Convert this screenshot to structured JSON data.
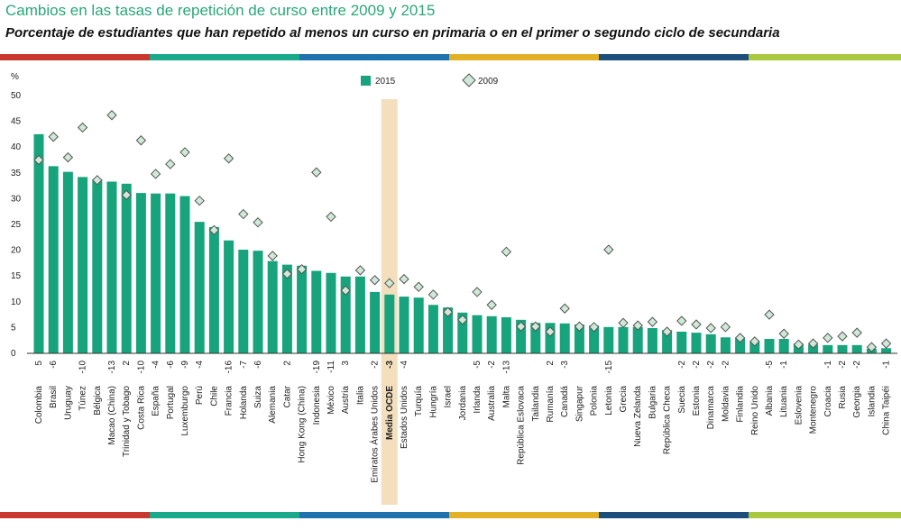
{
  "chart_data": {
    "type": "bar",
    "title": "Cambios en las tasas de repetición de curso entre 2009 y 2015",
    "subtitle": "Porcentaje de estudiantes que han repetido al menos un curso en primaria o en el primer o segundo ciclo de secundaria",
    "y_label": "%",
    "categories": [
      "Colombia",
      "Brasil",
      "Uruguay",
      "Túnez",
      "Bélgica",
      "Macao (China)",
      "Trinidad y Tobago",
      "Costa Rica",
      "España",
      "Portugal",
      "Luxemburgo",
      "Perú",
      "Chile",
      "Francia",
      "Holanda",
      "Suiza",
      "Alemania",
      "Catar",
      "Hong Kong (China)",
      "Indonesia",
      "México",
      "Austria",
      "Italia",
      "Emiratos Árabes Unidos",
      "Media OCDE",
      "Estados Unidos",
      "Turquía",
      "Hungría",
      "Israel",
      "Jordania",
      "Irlanda",
      "Australia",
      "Malta",
      "República Eslovaca",
      "Tailandia",
      "Rumanía",
      "Canadá",
      "Singapur",
      "Polonia",
      "Letonia",
      "Grecia",
      "Nueva Zelanda",
      "Bulgaria",
      "República Checa",
      "Suecia",
      "Estonia",
      "Dinamarca",
      "Moldavia",
      "Finlandia",
      "Reino Unido",
      "Albania",
      "Lituania",
      "Eslovenia",
      "Montenegro",
      "Croacia",
      "Rusia",
      "Georgia",
      "Islandia",
      "China Taipéi"
    ],
    "changes": [
      5,
      -6,
      null,
      -10,
      null,
      -13,
      2,
      -10,
      -4,
      -6,
      -9,
      -4,
      null,
      -16,
      -7,
      -6,
      null,
      2,
      null,
      -19,
      -11,
      3,
      null,
      -2,
      -3,
      -4,
      null,
      null,
      null,
      null,
      -5,
      -2,
      -13,
      null,
      null,
      2,
      -3,
      null,
      null,
      -15,
      null,
      null,
      null,
      null,
      -2,
      -2,
      -2,
      -2,
      null,
      null,
      -5,
      -1,
      null,
      null,
      -1,
      -2,
      -2,
      null,
      -1
    ],
    "series": [
      {
        "name": "2015",
        "type": "bar",
        "color": "#17a37b",
        "values": [
          42.5,
          36.3,
          35.2,
          34.2,
          33.7,
          33.3,
          32.9,
          31.1,
          31.0,
          31.0,
          30.5,
          25.5,
          24.5,
          21.9,
          20.1,
          19.9,
          17.9,
          17.2,
          17.0,
          16.0,
          15.6,
          14.9,
          14.9,
          11.9,
          11.4,
          11.0,
          10.8,
          9.4,
          8.9,
          7.9,
          7.4,
          7.2,
          7.0,
          6.5,
          5.9,
          5.9,
          5.8,
          5.6,
          5.4,
          5.1,
          5.1,
          5.1,
          4.9,
          4.5,
          4.2,
          4.0,
          3.7,
          3.1,
          3.0,
          2.4,
          2.8,
          2.8,
          1.9,
          1.7,
          1.6,
          1.6,
          1.6,
          0.9,
          1.0
        ]
      },
      {
        "name": "2009",
        "type": "scatter",
        "marker": "diamond",
        "color": "#cfe8d8",
        "values": [
          37.5,
          42.0,
          38.0,
          43.8,
          33.6,
          46.2,
          30.7,
          41.3,
          34.8,
          36.7,
          39.0,
          29.6,
          23.9,
          37.8,
          27.0,
          25.4,
          18.9,
          15.4,
          16.3,
          35.1,
          26.5,
          12.2,
          16.1,
          14.2,
          13.6,
          14.4,
          12.9,
          11.4,
          8.0,
          6.5,
          11.9,
          9.4,
          19.7,
          5.2,
          5.2,
          4.2,
          8.7,
          5.2,
          5.1,
          20.1,
          5.9,
          5.4,
          6.1,
          4.2,
          6.3,
          5.6,
          4.9,
          5.1,
          3.0,
          2.3,
          7.5,
          3.8,
          1.7,
          1.9,
          3.0,
          3.3,
          4.0,
          1.2,
          1.9
        ]
      }
    ],
    "ylim": [
      0,
      50
    ],
    "yticks": [
      0,
      5,
      10,
      15,
      20,
      25,
      30,
      35,
      40,
      45,
      50
    ],
    "grid": false,
    "legend": "top",
    "highlight": "Media OCDE",
    "highlight_color": "#f3dfbd"
  }
}
